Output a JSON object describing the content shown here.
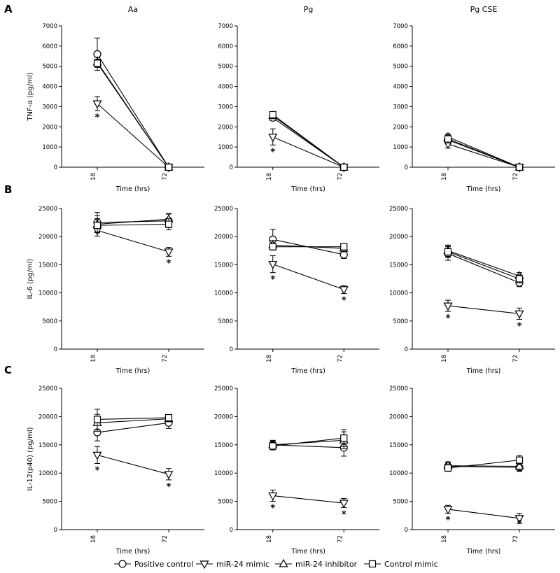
{
  "figure": {
    "panel_letters": [
      "A",
      "B",
      "C"
    ],
    "column_titles": [
      "Aa",
      "Pg",
      "Pg CSE"
    ],
    "ylabels": [
      "TNF-α (pg/ml)",
      "IL-6 (pg/ml)",
      "IL-12(p40) (pg/ml)"
    ],
    "xlabel": "Time (hrs)",
    "xtick_labels": [
      "18",
      "72"
    ],
    "significance_mark": "*",
    "legend": [
      "Positive control",
      "miR-24 mimic",
      "miR-24 inhibitor",
      "Control mimic"
    ],
    "marker_shapes": [
      "circle",
      "triangle-down",
      "triangle-up",
      "square"
    ]
  },
  "chart_data": [
    {
      "type": "line",
      "panel": "A",
      "title": "Aa",
      "xlabel": "Time (hrs)",
      "ylabel": "TNF-α (pg/ml)",
      "categories": [
        "18",
        "72"
      ],
      "ylim": [
        0,
        7000
      ],
      "yticks": [
        0,
        1000,
        2000,
        3000,
        4000,
        5000,
        6000,
        7000
      ],
      "series": [
        {
          "name": "Positive control",
          "values": [
            5600,
            0
          ],
          "errors": [
            800,
            0
          ]
        },
        {
          "name": "miR-24 mimic",
          "values": [
            3150,
            0
          ],
          "errors": [
            350,
            0
          ]
        },
        {
          "name": "miR-24 inhibitor",
          "values": [
            5200,
            0
          ],
          "errors": [
            250,
            0
          ]
        },
        {
          "name": "Control mimic",
          "values": [
            5150,
            0
          ],
          "errors": [
            200,
            0
          ]
        }
      ],
      "significant": [
        [
          1,
          0
        ]
      ]
    },
    {
      "type": "line",
      "panel": "A",
      "title": "Pg",
      "xlabel": "Time (hrs)",
      "ylabel": "",
      "categories": [
        "18",
        "72"
      ],
      "ylim": [
        0,
        7000
      ],
      "yticks": [
        0,
        1000,
        2000,
        3000,
        4000,
        5000,
        6000,
        7000
      ],
      "series": [
        {
          "name": "Positive control",
          "values": [
            2450,
            0
          ],
          "errors": [
            150,
            0
          ]
        },
        {
          "name": "miR-24 mimic",
          "values": [
            1500,
            0
          ],
          "errors": [
            400,
            0
          ]
        },
        {
          "name": "miR-24 inhibitor",
          "values": [
            2550,
            0
          ],
          "errors": [
            150,
            0
          ]
        },
        {
          "name": "Control mimic",
          "values": [
            2600,
            0
          ],
          "errors": [
            150,
            0
          ]
        }
      ],
      "significant": [
        [
          1,
          0
        ]
      ]
    },
    {
      "type": "line",
      "panel": "A",
      "title": "Pg CSE",
      "xlabel": "Time (hrs)",
      "ylabel": "",
      "categories": [
        "18",
        "72"
      ],
      "ylim": [
        0,
        7000
      ],
      "yticks": [
        0,
        1000,
        2000,
        3000,
        4000,
        5000,
        6000,
        7000
      ],
      "series": [
        {
          "name": "Positive control",
          "values": [
            1350,
            0
          ],
          "errors": [
            200,
            0
          ]
        },
        {
          "name": "miR-24 mimic",
          "values": [
            1150,
            0
          ],
          "errors": [
            200,
            0
          ]
        },
        {
          "name": "miR-24 inhibitor",
          "values": [
            1500,
            0
          ],
          "errors": [
            150,
            0
          ]
        },
        {
          "name": "Control mimic",
          "values": [
            1400,
            0
          ],
          "errors": [
            200,
            0
          ]
        }
      ],
      "significant": []
    },
    {
      "type": "line",
      "panel": "B",
      "title": "",
      "xlabel": "Time (hrs)",
      "ylabel": "IL-6 (pg/ml)",
      "categories": [
        "18",
        "72"
      ],
      "ylim": [
        0,
        25000
      ],
      "yticks": [
        0,
        5000,
        10000,
        15000,
        20000,
        25000
      ],
      "series": [
        {
          "name": "Positive control",
          "values": [
            22500,
            22800
          ],
          "errors": [
            1800,
            1200
          ]
        },
        {
          "name": "miR-24 mimic",
          "values": [
            21100,
            17300
          ],
          "errors": [
            1000,
            800
          ]
        },
        {
          "name": "miR-24 inhibitor",
          "values": [
            22200,
            23100
          ],
          "errors": [
            1500,
            1000
          ]
        },
        {
          "name": "Control mimic",
          "values": [
            22000,
            22200
          ],
          "errors": [
            1200,
            1000
          ]
        }
      ],
      "significant": [
        [
          1,
          1
        ]
      ]
    },
    {
      "type": "line",
      "panel": "B",
      "title": "",
      "xlabel": "Time (hrs)",
      "ylabel": "",
      "categories": [
        "18",
        "72"
      ],
      "ylim": [
        0,
        25000
      ],
      "yticks": [
        0,
        5000,
        10000,
        15000,
        20000,
        25000
      ],
      "series": [
        {
          "name": "Positive control",
          "values": [
            19500,
            16800
          ],
          "errors": [
            1800,
            700
          ]
        },
        {
          "name": "miR-24 mimic",
          "values": [
            15100,
            10600
          ],
          "errors": [
            1500,
            700
          ]
        },
        {
          "name": "miR-24 inhibitor",
          "values": [
            18500,
            17900
          ],
          "errors": [
            800,
            600
          ]
        },
        {
          "name": "Control mimic",
          "values": [
            18200,
            18200
          ],
          "errors": [
            600,
            500
          ]
        }
      ],
      "significant": [
        [
          1,
          0
        ],
        [
          1,
          1
        ]
      ]
    },
    {
      "type": "line",
      "panel": "B",
      "title": "",
      "xlabel": "Time (hrs)",
      "ylabel": "",
      "categories": [
        "18",
        "72"
      ],
      "ylim": [
        0,
        25000
      ],
      "yticks": [
        0,
        5000,
        10000,
        15000,
        20000,
        25000
      ],
      "series": [
        {
          "name": "Positive control",
          "values": [
            17000,
            11800
          ],
          "errors": [
            1200,
            700
          ]
        },
        {
          "name": "miR-24 mimic",
          "values": [
            7700,
            6300
          ],
          "errors": [
            1000,
            1000
          ]
        },
        {
          "name": "miR-24 inhibitor",
          "values": [
            17500,
            13000
          ],
          "errors": [
            1000,
            600
          ]
        },
        {
          "name": "Control mimic",
          "values": [
            17300,
            12500
          ],
          "errors": [
            1000,
            700
          ]
        }
      ],
      "significant": [
        [
          1,
          0
        ],
        [
          1,
          1
        ]
      ]
    },
    {
      "type": "line",
      "panel": "C",
      "title": "",
      "xlabel": "Time (hrs)",
      "ylabel": "IL-12(p40) (pg/ml)",
      "categories": [
        "18",
        "72"
      ],
      "ylim": [
        0,
        25000
      ],
      "yticks": [
        0,
        5000,
        10000,
        15000,
        20000,
        25000
      ],
      "series": [
        {
          "name": "Positive control",
          "values": [
            17200,
            18900
          ],
          "errors": [
            1500,
            1000
          ]
        },
        {
          "name": "miR-24 mimic",
          "values": [
            13200,
            9800
          ],
          "errors": [
            1500,
            1000
          ]
        },
        {
          "name": "miR-24 inhibitor",
          "values": [
            18900,
            19600
          ],
          "errors": [
            1500,
            500
          ]
        },
        {
          "name": "Control mimic",
          "values": [
            19500,
            19800
          ],
          "errors": [
            1800,
            400
          ]
        }
      ],
      "significant": [
        [
          1,
          0
        ],
        [
          1,
          1
        ]
      ]
    },
    {
      "type": "line",
      "panel": "C",
      "title": "",
      "xlabel": "Time (hrs)",
      "ylabel": "",
      "categories": [
        "18",
        "72"
      ],
      "ylim": [
        0,
        25000
      ],
      "yticks": [
        0,
        5000,
        10000,
        15000,
        20000,
        25000
      ],
      "series": [
        {
          "name": "Positive control",
          "values": [
            15000,
            14500
          ],
          "errors": [
            800,
            1500
          ]
        },
        {
          "name": "miR-24 mimic",
          "values": [
            6000,
            4700
          ],
          "errors": [
            1000,
            800
          ]
        },
        {
          "name": "miR-24 inhibitor",
          "values": [
            15000,
            15800
          ],
          "errors": [
            700,
            1500
          ]
        },
        {
          "name": "Control mimic",
          "values": [
            14800,
            16200
          ],
          "errors": [
            700,
            1500
          ]
        }
      ],
      "significant": [
        [
          1,
          0
        ],
        [
          1,
          1
        ]
      ]
    },
    {
      "type": "line",
      "panel": "C",
      "title": "",
      "xlabel": "Time (hrs)",
      "ylabel": "",
      "categories": [
        "18",
        "72"
      ],
      "ylim": [
        0,
        25000
      ],
      "yticks": [
        0,
        5000,
        10000,
        15000,
        20000,
        25000
      ],
      "series": [
        {
          "name": "Positive control",
          "values": [
            11200,
            11000
          ],
          "errors": [
            800,
            700
          ]
        },
        {
          "name": "miR-24 mimic",
          "values": [
            3600,
            2000
          ],
          "errors": [
            700,
            900
          ]
        },
        {
          "name": "miR-24 inhibitor",
          "values": [
            11300,
            11200
          ],
          "errors": [
            500,
            700
          ]
        },
        {
          "name": "Control mimic",
          "values": [
            10900,
            12300
          ],
          "errors": [
            600,
            800
          ]
        }
      ],
      "significant": [
        [
          1,
          0
        ],
        [
          1,
          1
        ]
      ]
    }
  ]
}
